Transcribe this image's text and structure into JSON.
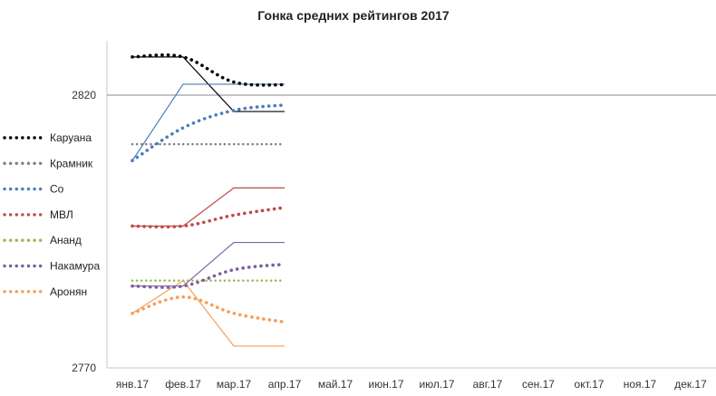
{
  "chart_data": {
    "type": "line",
    "title": "Гонка средних рейтингов 2017",
    "xlabel": "",
    "ylabel": "",
    "categories": [
      "янв.17",
      "фев.17",
      "мар.17",
      "апр.17",
      "май.17",
      "июн.17",
      "июл.17",
      "авг.17",
      "сен.17",
      "окт.17",
      "ноя.17",
      "дек.17"
    ],
    "ylim": [
      2770,
      2820
    ],
    "ytick_labels": [
      "2820",
      "2770"
    ],
    "reference_line": 2820,
    "legend_position": "left",
    "series": [
      {
        "name": "Каруана",
        "color": "#000000",
        "dotted": [
          2827.0,
          2827.0,
          2822.4,
          2821.9
        ],
        "monthly": [
          2827.0,
          2827.0,
          2817.0,
          2817.0
        ]
      },
      {
        "name": "Крамник",
        "color": "#808080",
        "dotted": [
          2811.0,
          2811.0,
          2811.0,
          2811.0
        ],
        "monthly": null
      },
      {
        "name": "Со",
        "color": "#4a7ebb",
        "dotted": [
          2808.0,
          2814.0,
          2817.2,
          2818.2
        ],
        "monthly": [
          2808.0,
          2822.0,
          2822.0,
          2822.0
        ]
      },
      {
        "name": "МВЛ",
        "color": "#be4b48",
        "dotted": [
          2796.0,
          2796.0,
          2798.0,
          2799.4
        ],
        "monthly": [
          2796.0,
          2796.0,
          2803.0,
          2803.0
        ]
      },
      {
        "name": "Ананд",
        "color": "#98b954",
        "dotted": [
          2786.0,
          2786.0,
          2786.0,
          2786.0
        ],
        "monthly": null
      },
      {
        "name": "Накамура",
        "color": "#7d5fa0",
        "dotted": [
          2785.0,
          2785.0,
          2788.0,
          2789.0
        ],
        "monthly": [
          2785.0,
          2785.0,
          2793.0,
          2793.0
        ]
      },
      {
        "name": "Аронян",
        "color": "#f59d56",
        "dotted": [
          2780.0,
          2783.0,
          2780.0,
          2778.4
        ],
        "monthly": [
          2780.0,
          2786.0,
          2774.0,
          2774.0
        ]
      }
    ]
  }
}
